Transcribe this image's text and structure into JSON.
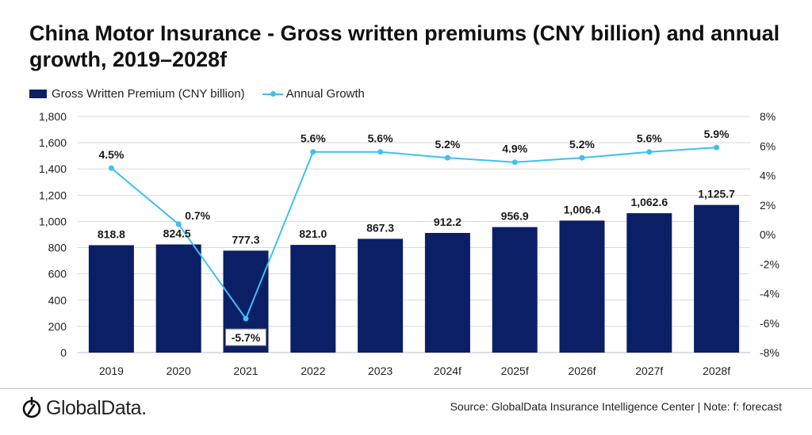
{
  "title": "China Motor Insurance - Gross written premiums (CNY billion) and annual growth, 2019–2028f",
  "legend": {
    "bar_label": "Gross Written Premium (CNY billion)",
    "line_label": "Annual Growth"
  },
  "footer": {
    "logo_text": "GlobalData.",
    "source": "Source: GlobalData Insurance Intelligence Center | Note: f: forecast"
  },
  "colors": {
    "bar": "#0b1f66",
    "line": "#3ec0f2",
    "grid": "#d9d9d9"
  },
  "chart_data": {
    "type": "bar",
    "categories": [
      "2019",
      "2020",
      "2021",
      "2022",
      "2023",
      "2024f",
      "2025f",
      "2026f",
      "2027f",
      "2028f"
    ],
    "series": [
      {
        "name": "Gross Written Premium (CNY billion)",
        "type": "bar",
        "axis": "left",
        "values": [
          818.8,
          824.5,
          777.3,
          821.0,
          867.3,
          912.2,
          956.9,
          1006.4,
          1062.6,
          1125.7
        ],
        "labels": [
          "818.8",
          "824.5",
          "777.3",
          "821.0",
          "867.3",
          "912.2",
          "956.9",
          "1,006.4",
          "1,062.6",
          "1,125.7"
        ]
      },
      {
        "name": "Annual Growth",
        "type": "line",
        "axis": "right",
        "values": [
          4.5,
          0.7,
          -5.7,
          5.6,
          5.6,
          5.2,
          4.9,
          5.2,
          5.6,
          5.9
        ],
        "labels": [
          "4.5%",
          "0.7%",
          "-5.7%",
          "5.6%",
          "5.6%",
          "5.2%",
          "4.9%",
          "5.2%",
          "5.6%",
          "5.9%"
        ]
      }
    ],
    "y_left": {
      "range": [
        0,
        1800
      ],
      "ticks": [
        "0",
        "200",
        "400",
        "600",
        "800",
        "1,000",
        "1,200",
        "1,400",
        "1,600",
        "1,800"
      ]
    },
    "y_right": {
      "range": [
        -8,
        8
      ],
      "ticks": [
        "-8%",
        "-6%",
        "-4%",
        "-2%",
        "0%",
        "2%",
        "4%",
        "6%",
        "8%"
      ]
    },
    "grid": true,
    "legend_position": "top-left"
  }
}
